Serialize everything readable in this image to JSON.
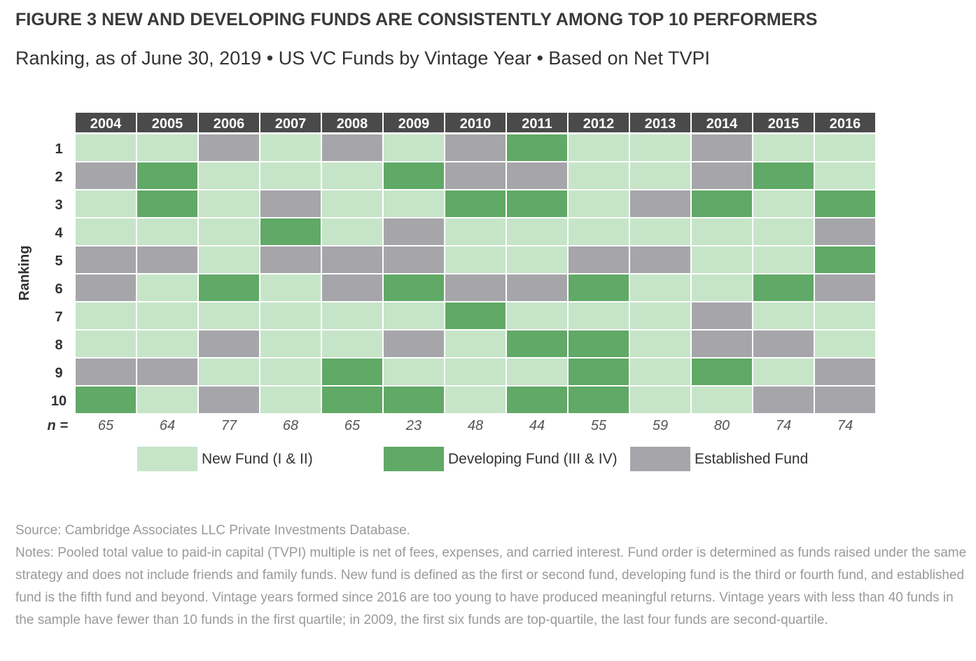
{
  "header": {
    "title": "FIGURE 3 NEW AND DEVELOPING FUNDS ARE CONSISTENTLY AMONG TOP 10 PERFORMERS",
    "subtitle": "Ranking, as of June 30, 2019 • US VC Funds by Vintage Year • Based on Net TVPI"
  },
  "colors": {
    "new": "#c6e5c8",
    "developing": "#60a966",
    "established": "#a6a6aa",
    "header_bg": "#4a4a4a",
    "header_text": "#ffffff"
  },
  "chart_data": {
    "type": "heatmap",
    "ylabel": "Ranking",
    "years": [
      "2004",
      "2005",
      "2006",
      "2007",
      "2008",
      "2009",
      "2010",
      "2011",
      "2012",
      "2013",
      "2014",
      "2015",
      "2016"
    ],
    "rankings": [
      "1",
      "2",
      "3",
      "4",
      "5",
      "6",
      "7",
      "8",
      "9",
      "10"
    ],
    "n_label": "n =",
    "n_values": [
      "65",
      "64",
      "77",
      "68",
      "65",
      "23",
      "48",
      "44",
      "55",
      "59",
      "80",
      "74",
      "74"
    ],
    "categories": {
      "N": "New Fund (I & II)",
      "D": "Developing Fund (III & IV)",
      "E": "Established Fund"
    },
    "grid": [
      [
        "N",
        "N",
        "E",
        "N",
        "E",
        "N",
        "E",
        "D",
        "N",
        "N",
        "E",
        "N",
        "N"
      ],
      [
        "E",
        "D",
        "N",
        "N",
        "N",
        "D",
        "E",
        "E",
        "N",
        "N",
        "E",
        "D",
        "N"
      ],
      [
        "N",
        "D",
        "N",
        "E",
        "N",
        "N",
        "D",
        "D",
        "N",
        "E",
        "D",
        "N",
        "D"
      ],
      [
        "N",
        "N",
        "N",
        "D",
        "N",
        "E",
        "N",
        "N",
        "N",
        "N",
        "N",
        "N",
        "E"
      ],
      [
        "E",
        "E",
        "N",
        "E",
        "E",
        "E",
        "N",
        "N",
        "E",
        "E",
        "N",
        "N",
        "D"
      ],
      [
        "E",
        "N",
        "D",
        "N",
        "E",
        "D",
        "E",
        "E",
        "D",
        "N",
        "N",
        "D",
        "E"
      ],
      [
        "N",
        "N",
        "N",
        "N",
        "N",
        "N",
        "D",
        "N",
        "N",
        "N",
        "E",
        "N",
        "N"
      ],
      [
        "N",
        "N",
        "E",
        "N",
        "N",
        "E",
        "N",
        "D",
        "D",
        "N",
        "E",
        "E",
        "N"
      ],
      [
        "E",
        "E",
        "N",
        "N",
        "D",
        "N",
        "N",
        "N",
        "D",
        "N",
        "D",
        "N",
        "E"
      ],
      [
        "D",
        "N",
        "E",
        "N",
        "D",
        "D",
        "N",
        "D",
        "D",
        "N",
        "N",
        "E",
        "E"
      ]
    ],
    "legend": [
      {
        "key": "N",
        "label": "New Fund (I & II)"
      },
      {
        "key": "D",
        "label": "Developing Fund (III & IV)"
      },
      {
        "key": "E",
        "label": "Established Fund"
      }
    ]
  },
  "notes": {
    "source": "Source: Cambridge Associates LLC Private Investments Database.",
    "text": "Notes: Pooled total value to paid-in capital (TVPI) multiple is net of fees, expenses, and carried interest. Fund order is determined as funds raised under the same strategy and does not include friends and family funds. New fund is defined as the first or second fund, developing fund is the third or fourth fund, and established fund is the fifth fund and beyond. Vintage years formed since 2016 are too young to have produced meaningful returns. Vintage years with less than 40 funds in the sample have fewer than 10 funds in the first quartile; in 2009, the first six funds are top-quartile, the last four funds are second-quartile."
  }
}
